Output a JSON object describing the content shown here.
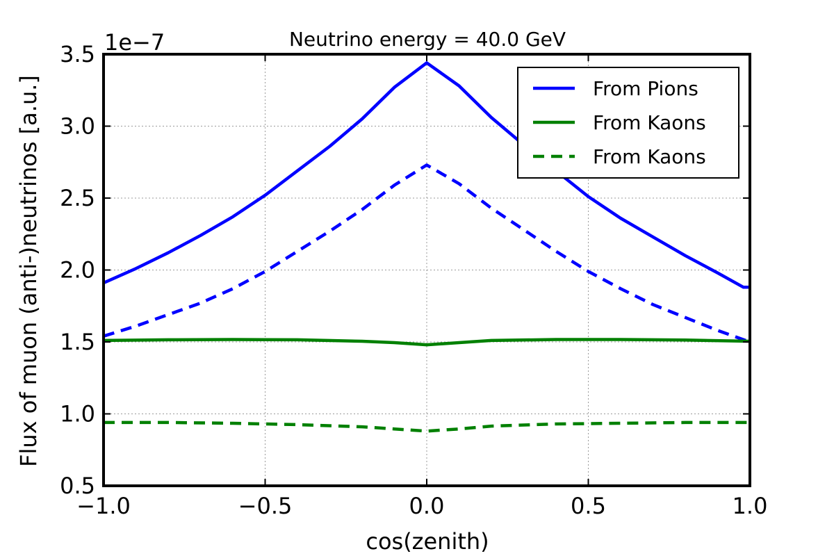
{
  "chart_data": {
    "type": "line",
    "title": "Neutrino energy = 40.0 GeV",
    "xlabel": "cos(zenith)",
    "ylabel": "Flux of muon (anti-)neutrinos [a.u.]",
    "offset_text": "1e−7",
    "xlim": [
      -1.0,
      1.0
    ],
    "ylim": [
      0.5,
      3.5
    ],
    "xticks": [
      -1.0,
      -0.5,
      0.0,
      0.5,
      1.0
    ],
    "xtick_labels": [
      "−1.0",
      "−0.5",
      "0.0",
      "0.5",
      "1.0"
    ],
    "yticks": [
      0.5,
      1.0,
      1.5,
      2.0,
      2.5,
      3.0,
      3.5
    ],
    "ytick_labels": [
      "0.5",
      "1.0",
      "1.5",
      "2.0",
      "2.5",
      "3.0",
      "3.5"
    ],
    "grid": true,
    "legend_position": "top-right",
    "series": [
      {
        "name": "From Pions",
        "color": "#0000ff",
        "linestyle": "solid",
        "x": [
          -1.0,
          -0.9,
          -0.8,
          -0.7,
          -0.6,
          -0.5,
          -0.4,
          -0.3,
          -0.2,
          -0.1,
          0.0,
          0.1,
          0.2,
          0.3,
          0.4,
          0.5,
          0.6,
          0.7,
          0.8,
          0.9,
          0.98,
          1.0
        ],
        "y": [
          1.91,
          2.01,
          2.12,
          2.24,
          2.37,
          2.52,
          2.69,
          2.86,
          3.05,
          3.27,
          3.44,
          3.28,
          3.06,
          2.87,
          2.69,
          2.51,
          2.36,
          2.23,
          2.1,
          1.98,
          1.88,
          1.88
        ]
      },
      {
        "name": "",
        "color": "#0000ff",
        "linestyle": "dashed",
        "x": [
          -1.0,
          -0.9,
          -0.8,
          -0.7,
          -0.6,
          -0.5,
          -0.4,
          -0.3,
          -0.2,
          -0.1,
          0.0,
          0.1,
          0.2,
          0.3,
          0.4,
          0.5,
          0.6,
          0.7,
          0.8,
          0.9,
          1.0
        ],
        "y": [
          1.54,
          1.61,
          1.69,
          1.77,
          1.87,
          1.99,
          2.13,
          2.27,
          2.42,
          2.59,
          2.73,
          2.6,
          2.43,
          2.28,
          2.13,
          1.99,
          1.87,
          1.76,
          1.67,
          1.58,
          1.5
        ]
      },
      {
        "name": "From Kaons",
        "color": "#008000",
        "linestyle": "solid",
        "x": [
          -1.0,
          -0.8,
          -0.6,
          -0.4,
          -0.2,
          -0.1,
          0.0,
          0.1,
          0.2,
          0.4,
          0.6,
          0.8,
          1.0
        ],
        "y": [
          1.51,
          1.515,
          1.517,
          1.515,
          1.505,
          1.495,
          1.48,
          1.495,
          1.51,
          1.517,
          1.517,
          1.513,
          1.505
        ]
      },
      {
        "name": "From Kaons",
        "color": "#008000",
        "linestyle": "dashed",
        "x": [
          -1.0,
          -0.8,
          -0.6,
          -0.4,
          -0.2,
          -0.1,
          0.0,
          0.1,
          0.2,
          0.4,
          0.6,
          0.8,
          1.0
        ],
        "y": [
          0.94,
          0.94,
          0.935,
          0.925,
          0.91,
          0.895,
          0.88,
          0.895,
          0.915,
          0.93,
          0.935,
          0.94,
          0.94
        ]
      }
    ]
  }
}
